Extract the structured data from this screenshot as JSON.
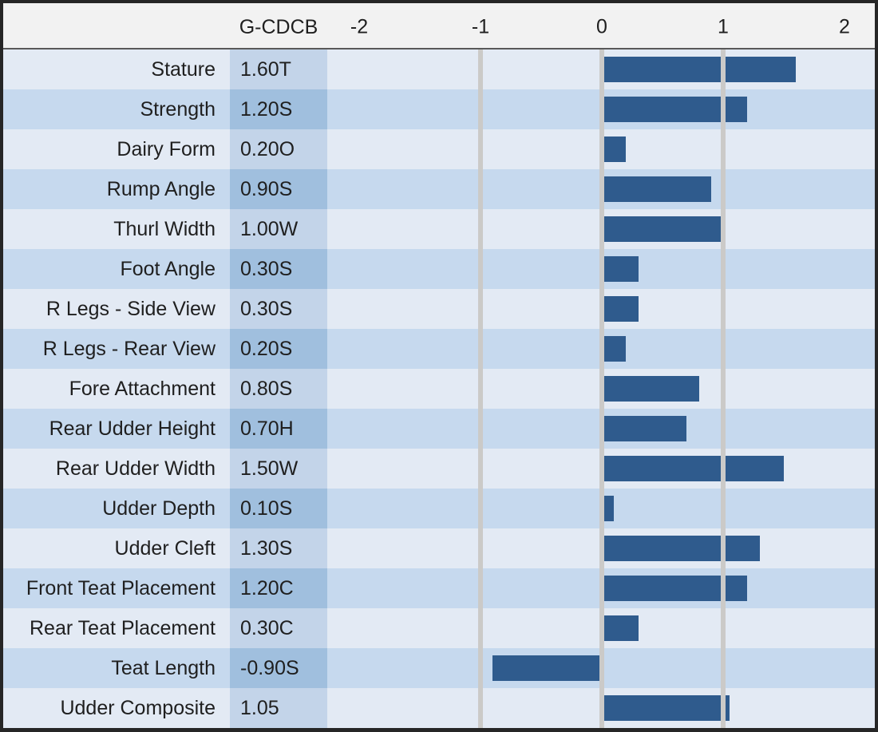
{
  "colors": {
    "frame": "#262626",
    "header_bg": "#F2F2F2",
    "header_rule": "#595959",
    "row_dark": "#C6D9EE",
    "row_light": "#E3EAF4",
    "value_dark": "#A0BFDE",
    "value_light": "#C3D4E9",
    "gridline": "#CBCAC8",
    "bar": "#2F5B8D",
    "text": "#1F1F1F"
  },
  "header": {
    "score_column_label": "G-CDCB"
  },
  "chart_data": {
    "type": "bar",
    "title": "",
    "orientation": "horizontal",
    "xlabel": "",
    "ylabel": "",
    "xlim": [
      -2.26,
      2.25
    ],
    "x_axis_ticks": [
      -2,
      -1,
      0,
      1,
      2
    ],
    "gridlines_at": [
      -1,
      0,
      1
    ],
    "grid": true,
    "legend": false,
    "bar_color": "#2F5B8D",
    "score_column_header": "G-CDCB",
    "categories": [
      "Stature",
      "Strength",
      "Dairy Form",
      "Rump Angle",
      "Thurl Width",
      "Foot Angle",
      "R Legs - Side View",
      "R Legs - Rear View",
      "Fore Attachment",
      "Rear Udder Height",
      "Rear Udder Width",
      "Udder Depth",
      "Udder Cleft",
      "Front Teat Placement",
      "Rear Teat Placement",
      "Teat Length",
      "Udder Composite"
    ],
    "values": [
      1.6,
      1.2,
      0.2,
      0.9,
      1.0,
      0.3,
      0.3,
      0.2,
      0.8,
      0.7,
      1.5,
      0.1,
      1.3,
      1.2,
      0.3,
      -0.9,
      1.05
    ],
    "rows": [
      {
        "trait": "Stature",
        "score": "1.60T",
        "value": 1.6
      },
      {
        "trait": "Strength",
        "score": "1.20S",
        "value": 1.2
      },
      {
        "trait": "Dairy Form",
        "score": "0.20O",
        "value": 0.2
      },
      {
        "trait": "Rump Angle",
        "score": "0.90S",
        "value": 0.9
      },
      {
        "trait": "Thurl Width",
        "score": "1.00W",
        "value": 1.0
      },
      {
        "trait": "Foot Angle",
        "score": "0.30S",
        "value": 0.3
      },
      {
        "trait": "R Legs - Side View",
        "score": "0.30S",
        "value": 0.3
      },
      {
        "trait": "R Legs - Rear View",
        "score": "0.20S",
        "value": 0.2
      },
      {
        "trait": "Fore Attachment",
        "score": "0.80S",
        "value": 0.8
      },
      {
        "trait": "Rear Udder Height",
        "score": "0.70H",
        "value": 0.7
      },
      {
        "trait": "Rear Udder Width",
        "score": "1.50W",
        "value": 1.5
      },
      {
        "trait": "Udder Depth",
        "score": "0.10S",
        "value": 0.1
      },
      {
        "trait": "Udder Cleft",
        "score": "1.30S",
        "value": 1.3
      },
      {
        "trait": "Front Teat Placement",
        "score": "1.20C",
        "value": 1.2
      },
      {
        "trait": "Rear Teat Placement",
        "score": "0.30C",
        "value": 0.3
      },
      {
        "trait": "Teat Length",
        "score": "-0.90S",
        "value": -0.9
      },
      {
        "trait": "Udder Composite",
        "score": "1.05",
        "value": 1.05
      }
    ]
  }
}
